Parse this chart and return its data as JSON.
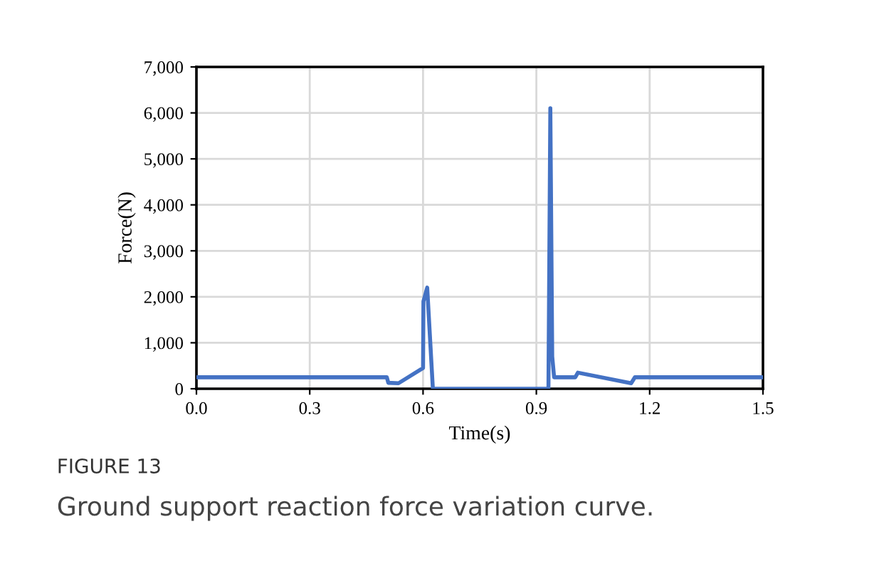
{
  "chart_data": {
    "type": "line",
    "xlabel": "Time(s)",
    "ylabel": "Force(N)",
    "x": [
      0,
      0.504,
      0.508,
      0.535,
      0.6,
      0.601,
      0.611,
      0.626,
      0.932,
      0.937,
      0.942,
      0.947,
      1.003,
      1.01,
      1.151,
      1.161,
      1.5
    ],
    "series": [
      {
        "color": "#4472c4",
        "values": [
          250,
          250,
          130,
          120,
          450,
          1900,
          2200,
          0,
          0,
          6100,
          700,
          250,
          250,
          350,
          120,
          250,
          250
        ]
      }
    ],
    "xlim": [
      0,
      1.5
    ],
    "xticks": [
      {
        "value": 0,
        "label": "0.0"
      },
      0.3,
      0.6,
      0.9,
      1.2,
      1.5
    ],
    "ylim": [
      0,
      7000
    ],
    "yticks": [
      {
        "value": 0,
        "label": "0"
      },
      {
        "value": 1000,
        "label": "1,000"
      },
      {
        "value": 2000,
        "label": "2,000"
      },
      {
        "value": 3000,
        "label": "3,000"
      },
      {
        "value": 4000,
        "label": "4,000"
      },
      {
        "value": 5000,
        "label": "5,000"
      },
      {
        "value": 6000,
        "label": "6,000"
      },
      {
        "value": 7000,
        "label": "7,000"
      }
    ],
    "grid": true,
    "marker": "none",
    "line_style": "solid",
    "annotations": [
      "FIGURE 13",
      "Ground support reaction force variation curve."
    ]
  }
}
